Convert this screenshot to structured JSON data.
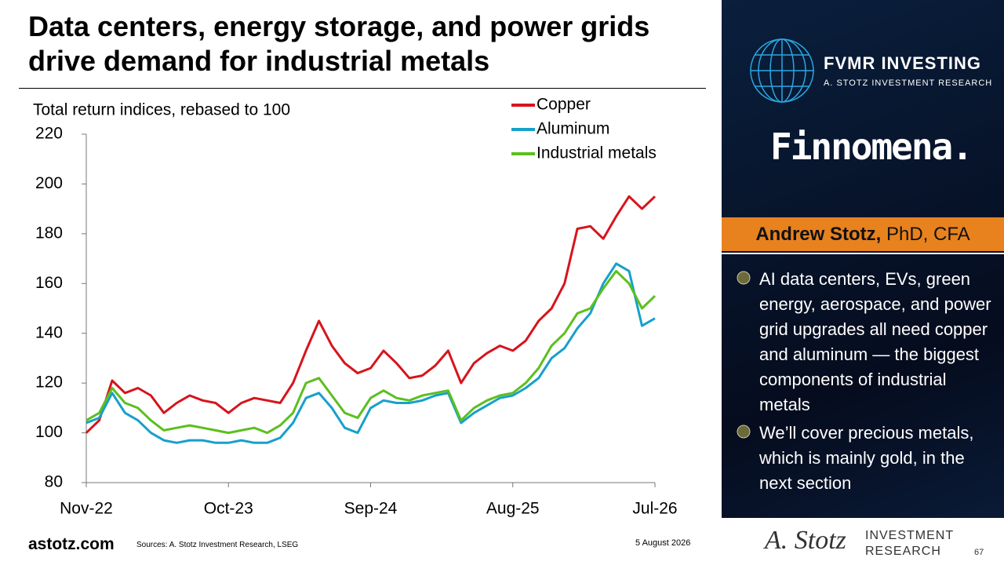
{
  "chart_data": {
    "type": "line",
    "title": "Data centers, energy storage, and power grids drive demand for industrial metals",
    "subtitle": "Total return indices, rebased to 100",
    "categories": [
      "Nov-22",
      null,
      null,
      null,
      null,
      null,
      null,
      null,
      null,
      null,
      null,
      "Oct-23",
      null,
      null,
      null,
      null,
      null,
      null,
      null,
      null,
      null,
      null,
      "Sep-24",
      null,
      null,
      null,
      null,
      null,
      null,
      null,
      null,
      null,
      null,
      "Aug-25",
      null,
      null,
      null,
      null,
      null,
      null,
      null,
      null,
      null,
      null,
      "Jul-26"
    ],
    "series": [
      {
        "name": "Copper",
        "color": "#d7141c",
        "values": [
          100,
          105,
          121,
          116,
          118,
          115,
          108,
          112,
          115,
          113,
          112,
          108,
          112,
          114,
          113,
          112,
          120,
          133,
          145,
          135,
          128,
          124,
          126,
          133,
          128,
          122,
          123,
          127,
          133,
          120,
          128,
          132,
          135,
          133,
          137,
          145,
          150,
          160,
          182,
          183,
          178,
          187,
          195,
          190,
          195
        ]
      },
      {
        "name": "Aluminum",
        "color": "#17a0cb",
        "values": [
          104,
          106,
          116,
          108,
          105,
          100,
          97,
          96,
          97,
          97,
          96,
          96,
          97,
          96,
          96,
          98,
          104,
          114,
          116,
          110,
          102,
          100,
          110,
          113,
          112,
          112,
          113,
          115,
          116,
          104,
          108,
          111,
          114,
          115,
          118,
          122,
          130,
          134,
          142,
          148,
          160,
          168,
          165,
          143,
          146
        ]
      },
      {
        "name": "Industrial metals",
        "color": "#5cbf1f",
        "values": [
          105,
          108,
          118,
          112,
          110,
          105,
          101,
          102,
          103,
          102,
          101,
          100,
          101,
          102,
          100,
          103,
          108,
          120,
          122,
          115,
          108,
          106,
          114,
          117,
          114,
          113,
          115,
          116,
          117,
          105,
          110,
          113,
          115,
          116,
          120,
          126,
          135,
          140,
          148,
          150,
          158,
          165,
          160,
          150,
          155
        ]
      }
    ],
    "ylim": [
      80,
      220
    ],
    "yticks": [
      80,
      100,
      120,
      140,
      160,
      180,
      200,
      220
    ],
    "grid": false,
    "legend": "top-right"
  },
  "sidebar": {
    "brand": "FVMR INVESTING",
    "brand_sub": "A. STOTZ INVESTMENT RESEARCH",
    "partner": "Finnomena.",
    "presenter_name": "Andrew Stotz,",
    "presenter_credentials": "PhD, CFA",
    "bullets": [
      "AI data centers, EVs, green energy, aerospace, and power grid upgrades all need copper and aluminum — the biggest components of industrial metals",
      "We’ll cover precious metals, which is mainly gold, in the next section"
    ]
  },
  "footer": {
    "site": "astotz.com",
    "sources": "Sources: A. Stotz Investment Research, LSEG",
    "date": "5 August 2026",
    "signature": "A. Stotz",
    "logo_line1": "INVESTMENT",
    "logo_line2": "RESEARCH",
    "page": "67"
  }
}
